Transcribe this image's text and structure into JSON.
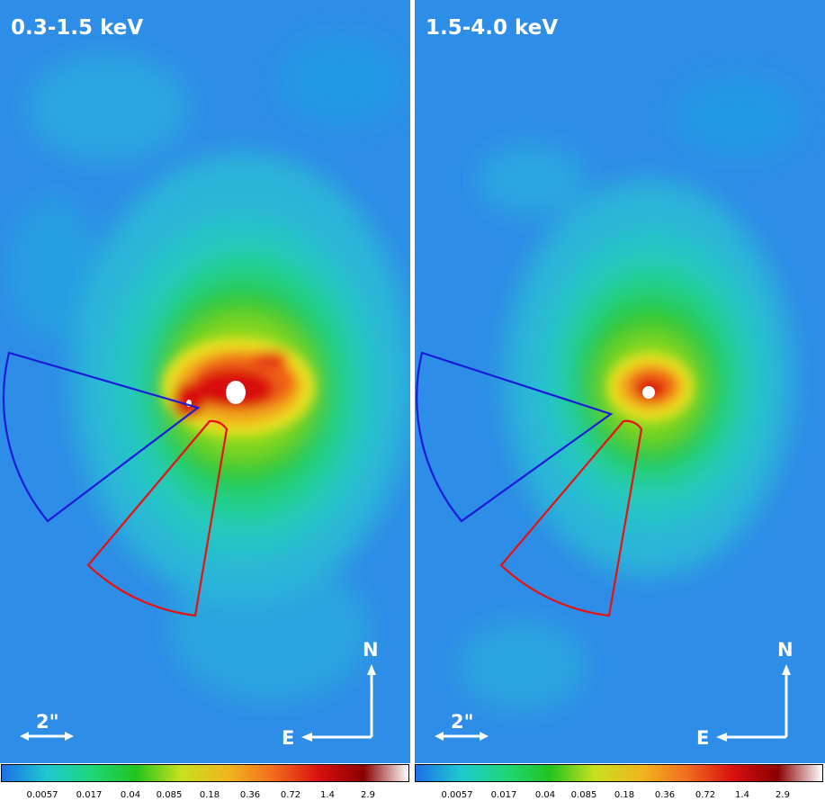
{
  "panels": [
    {
      "band_label": "0.3-1.5 keV",
      "north_label": "N",
      "east_label": "E",
      "scale_label": "2\""
    },
    {
      "band_label": "1.5-4.0 keV",
      "north_label": "N",
      "east_label": "E",
      "scale_label": "2\""
    }
  ],
  "colorbar": {
    "ticks": [
      "0.0057",
      "0.017",
      "0.04",
      "0.085",
      "0.18",
      "0.36",
      "0.72",
      "1.4",
      "2.9"
    ],
    "colors": [
      "#1e6fe6",
      "#1fc8d0",
      "#1fd77a",
      "#22c31f",
      "#c8e01f",
      "#f0b41e",
      "#f06a1e",
      "#d81010",
      "#8a0000",
      "#ffffff"
    ]
  },
  "regions": {
    "blue_sector_color": "#1a1ad8",
    "red_sector_color": "#e81010"
  }
}
